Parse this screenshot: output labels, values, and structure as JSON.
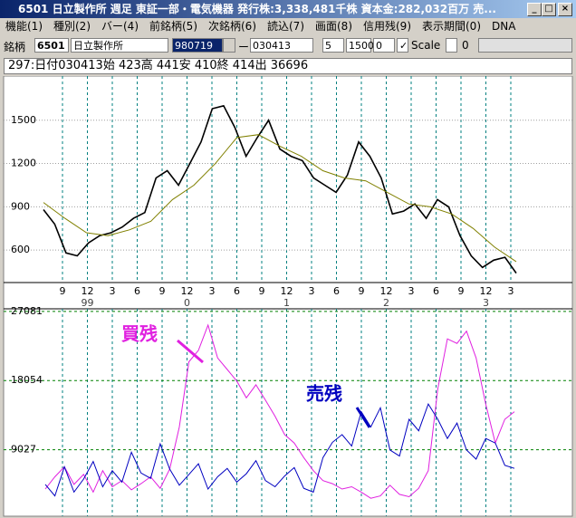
{
  "window": {
    "title": "6501 日立製作所 週足 東証一部・電気機器 発行株:3,338,481千株 資本金:282,032百万 売..."
  },
  "menu": [
    "機能(1)",
    "種別(2)",
    "バー(4)",
    "前銘柄(5)",
    "次銘柄(6)",
    "読込(7)",
    "画面(8)",
    "信用残(9)",
    "表示期間(0)",
    "DNA"
  ],
  "toolbar": {
    "label": "銘柄",
    "code": "6501",
    "name": "日立製作所",
    "from": "980719",
    "separator": "ー",
    "to": "030413",
    "field1": "5",
    "field2": "1500",
    "field3": "0",
    "scale_label": "Scale",
    "field4": "0"
  },
  "info": "297:日付030413始 423高 441安 410終 414出 36696",
  "price_chart": {
    "type": "line",
    "ylim": [
      375,
      1806
    ],
    "yticks": [
      600,
      900,
      1200,
      1500
    ],
    "grid": true,
    "series": [
      {
        "color": "#000000",
        "values": [
          880,
          780,
          580,
          560,
          650,
          700,
          720,
          760,
          820,
          860,
          1100,
          1150,
          1050,
          1200,
          1350,
          1580,
          1600,
          1450,
          1250,
          1380,
          1500,
          1300,
          1250,
          1220,
          1100,
          1050,
          1000,
          1120,
          1350,
          1250,
          1100,
          850,
          870,
          920,
          820,
          950,
          900,
          700,
          560,
          480,
          530,
          550,
          440
        ]
      },
      {
        "color": "#808000",
        "values": [
          930,
          820,
          720,
          700,
          740,
          800,
          950,
          1050,
          1200,
          1380,
          1400,
          1320,
          1250,
          1150,
          1100,
          1080,
          1000,
          920,
          900,
          850,
          750,
          620,
          520
        ]
      }
    ]
  },
  "date_axis": {
    "months": [
      "9",
      "12",
      "3",
      "6",
      "9",
      "12",
      "3",
      "6",
      "9",
      "12",
      "3",
      "6",
      "9",
      "12",
      "3",
      "6",
      "9",
      "12",
      "3"
    ],
    "years": [
      null,
      "99",
      null,
      null,
      null,
      "0",
      null,
      null,
      null,
      "1",
      null,
      null,
      null,
      "2",
      null,
      null,
      null,
      "3",
      null
    ]
  },
  "margin_chart": {
    "type": "line",
    "ylim": [
      594,
      27300
    ],
    "yticks": [
      9027,
      18054,
      27081
    ],
    "grid": true,
    "series": [
      {
        "color": "#e020e0",
        "values": [
          3900,
          5500,
          6800,
          4500,
          5800,
          3500,
          6300,
          4200,
          5000,
          3800,
          4600,
          5500,
          4000,
          6500,
          12000,
          20500,
          22000,
          25300,
          21000,
          19500,
          18000,
          15800,
          17500,
          15500,
          13400,
          11000,
          9900,
          8000,
          6300,
          5000,
          4600,
          3900,
          4200,
          3500,
          2700,
          3000,
          4400,
          3200,
          2900,
          4000,
          6300,
          17000,
          23500,
          22900,
          24500,
          21000,
          15000,
          9900,
          13000,
          14000
        ]
      },
      {
        "color": "#0000c0",
        "values": [
          4500,
          3000,
          6800,
          3500,
          5200,
          7500,
          4200,
          6300,
          4800,
          8700,
          6000,
          5300,
          9800,
          6500,
          4400,
          5800,
          7200,
          3900,
          5500,
          6600,
          4800,
          5900,
          7600,
          5000,
          4200,
          5600,
          6700,
          4000,
          3500,
          8000,
          10000,
          11000,
          9500,
          14000,
          12000,
          14500,
          9000,
          8200,
          13000,
          11500,
          15000,
          13000,
          10500,
          12500,
          9000,
          7800,
          10500,
          9900,
          7000,
          6600
        ]
      }
    ],
    "annotations": [
      "買残",
      "売残"
    ]
  }
}
